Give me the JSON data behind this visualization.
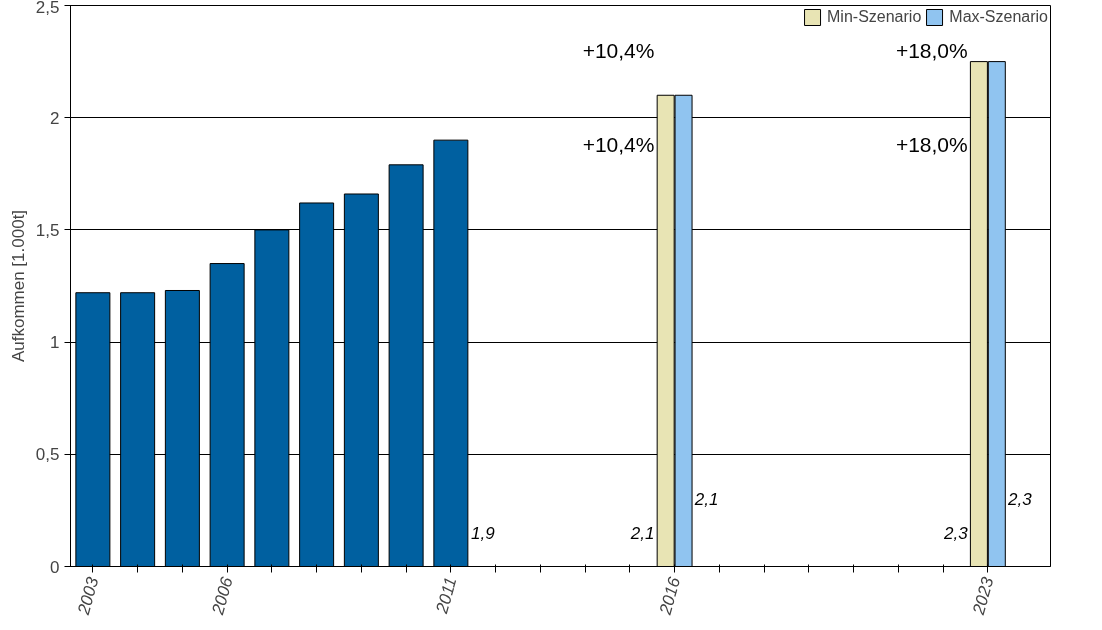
{
  "chart_data": {
    "type": "bar",
    "ylabel": "Aufkommen [1.000t]",
    "xlim": [
      2002.5,
      2024.4
    ],
    "ylim": [
      0,
      2.5
    ],
    "xticks": [
      2003,
      {
        "value": 2004,
        "label": null
      },
      {
        "value": 2005,
        "label": null
      },
      2006,
      {
        "value": 2007,
        "label": null
      },
      {
        "value": 2008,
        "label": null
      },
      {
        "value": 2009,
        "label": null
      },
      {
        "value": 2010,
        "label": null
      },
      2011,
      {
        "value": 2012,
        "label": null
      },
      {
        "value": 2013,
        "label": null
      },
      {
        "value": 2014,
        "label": null
      },
      {
        "value": 2015,
        "label": null
      },
      2016,
      {
        "value": 2017,
        "label": null
      },
      {
        "value": 2018,
        "label": null
      },
      {
        "value": 2019,
        "label": null
      },
      {
        "value": 2020,
        "label": null
      },
      {
        "value": 2021,
        "label": null
      },
      {
        "value": 2022,
        "label": null
      },
      2023
    ],
    "yticks": [
      0,
      {
        "value": 0.5,
        "label": "0,5"
      },
      1,
      {
        "value": 1.5,
        "label": "1,5"
      },
      2,
      {
        "value": 2.5,
        "label": "2,5"
      }
    ],
    "grid": "y",
    "legend": "top right",
    "series": [
      {
        "color": "#0060a0",
        "x": [
          2003,
          2004,
          2005,
          2006,
          2007,
          2008,
          2009,
          2010,
          2011
        ],
        "values": [
          1.22,
          1.22,
          1.23,
          1.35,
          1.5,
          1.62,
          1.66,
          1.79,
          1.9
        ],
        "value_labels": [
          null,
          null,
          null,
          null,
          null,
          null,
          null,
          null,
          "1,9"
        ]
      },
      {
        "name": "Min-Szenario",
        "color": "#e8e4b4",
        "x": [
          2016,
          2023
        ],
        "values": [
          2.1,
          2.25
        ],
        "value_labels": [
          "2,1",
          "2,3"
        ]
      },
      {
        "name": "Max-Szenario",
        "color": "#90c4f0",
        "x": [
          2016,
          2023
        ],
        "values": [
          2.1,
          2.25
        ],
        "value_labels": [
          "2,1",
          "2,3"
        ]
      }
    ],
    "annotations": [
      "+10,4%",
      "+10,4%",
      "+18,0%",
      "+18,0%"
    ]
  }
}
